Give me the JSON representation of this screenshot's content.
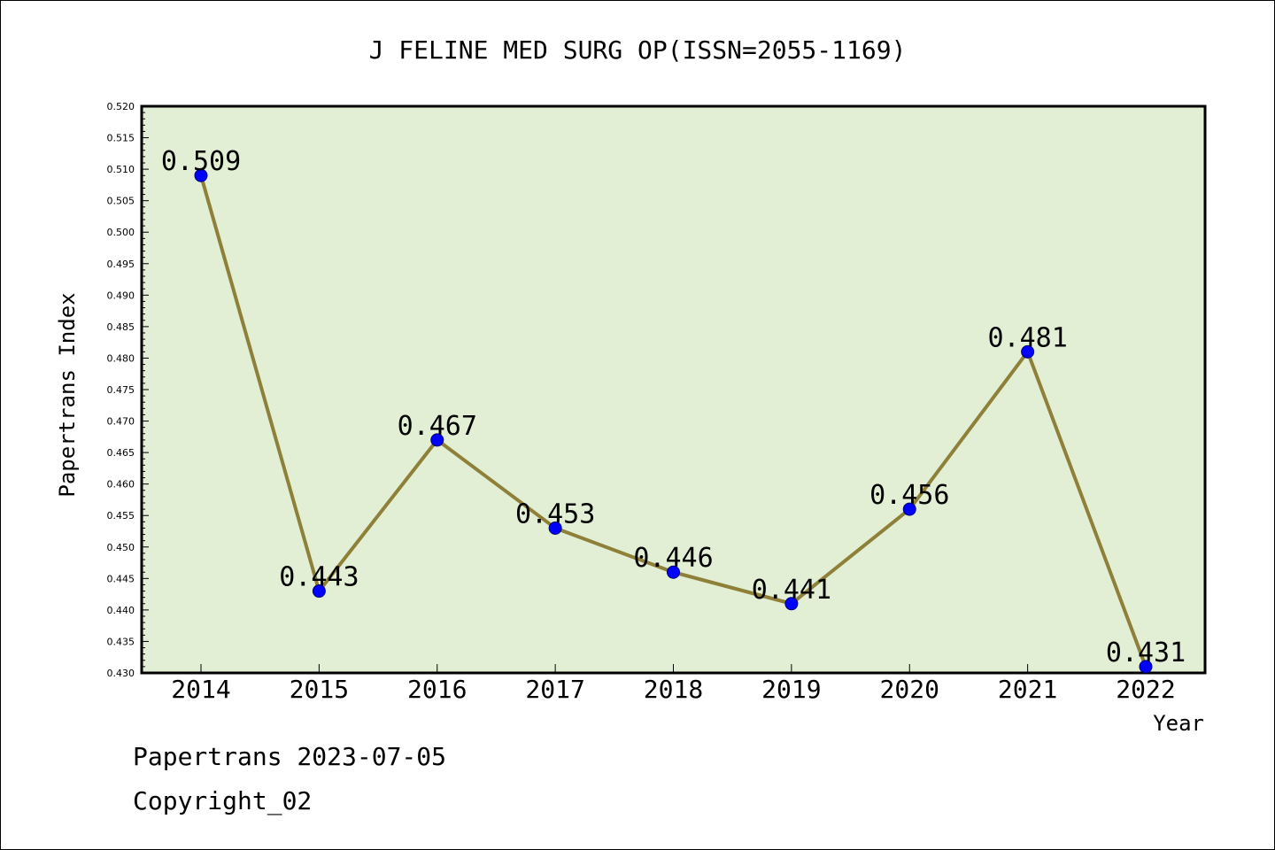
{
  "chart_data": {
    "type": "line",
    "title": "J FELINE MED SURG OP(ISSN=2055-1169)",
    "xlabel": "Year",
    "ylabel": "Papertrans Index",
    "categories": [
      "2014",
      "2015",
      "2016",
      "2017",
      "2018",
      "2019",
      "2020",
      "2021",
      "2022"
    ],
    "series": [
      {
        "values": [
          0.509,
          0.443,
          0.467,
          0.453,
          0.446,
          0.441,
          0.456,
          0.481,
          0.431
        ]
      }
    ],
    "data_labels": [
      "0.509",
      "0.443",
      "0.467",
      "0.453",
      "0.446",
      "0.441",
      "0.456",
      "0.481",
      "0.431"
    ],
    "ylim": [
      0.43,
      0.52
    ],
    "yticks": [
      "0.430",
      "0.435",
      "0.440",
      "0.445",
      "0.450",
      "0.455",
      "0.460",
      "0.465",
      "0.470",
      "0.475",
      "0.480",
      "0.485",
      "0.490",
      "0.495",
      "0.500",
      "0.505",
      "0.510",
      "0.515",
      "0.520"
    ],
    "grid": false,
    "legend": "none",
    "colors": {
      "plot_background": "#e2efd5",
      "line": "#8e8038",
      "marker": "#0000ff"
    }
  },
  "footer": {
    "line1": "Papertrans 2023-07-05",
    "line2": "Copyright_02"
  }
}
